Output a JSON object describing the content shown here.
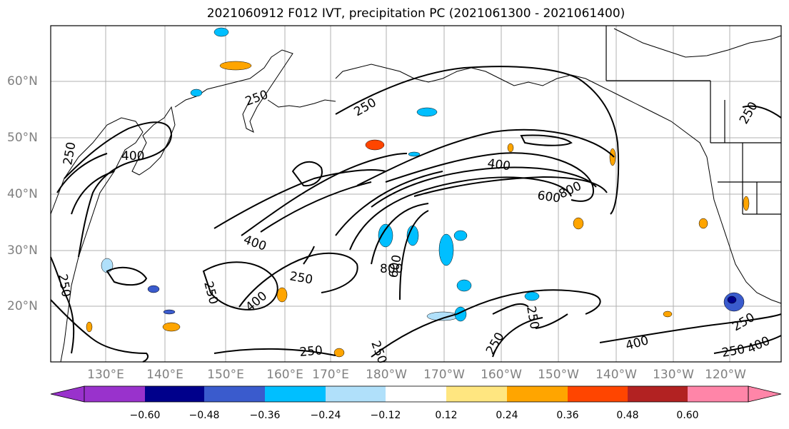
{
  "title": "2021060912 F012 IVT, precipitation PC (2021061300 - 2021061400)",
  "axes": {
    "lat_labels": [
      "60°N",
      "50°N",
      "40°N",
      "30°N",
      "20°N"
    ],
    "lon_labels": [
      "130°E",
      "140°E",
      "150°E",
      "160°E",
      "170°E",
      "180°W",
      "170°W",
      "160°W",
      "150°W",
      "140°W",
      "130°W",
      "120°W"
    ],
    "grid": true
  },
  "contour_labels": [
    "250",
    "250",
    "250",
    "400",
    "400",
    "400",
    "600",
    "600",
    "800",
    "800",
    "250",
    "250",
    "250",
    "250",
    "250",
    "400",
    "250",
    "250",
    "250",
    "250",
    "400",
    "250",
    "400"
  ],
  "colorbar": {
    "ticks": [
      "−0.60",
      "−0.48",
      "−0.36",
      "−0.24",
      "−0.12",
      "0.12",
      "0.24",
      "0.36",
      "0.48",
      "0.60"
    ],
    "colors": [
      "#9932cc",
      "#00008b",
      "#3a5bcd",
      "#00bfff",
      "#b0e0fa",
      "#ffffff",
      "#ffe680",
      "#ffa500",
      "#ff4500",
      "#b22222",
      "#ff85a8"
    ]
  }
}
